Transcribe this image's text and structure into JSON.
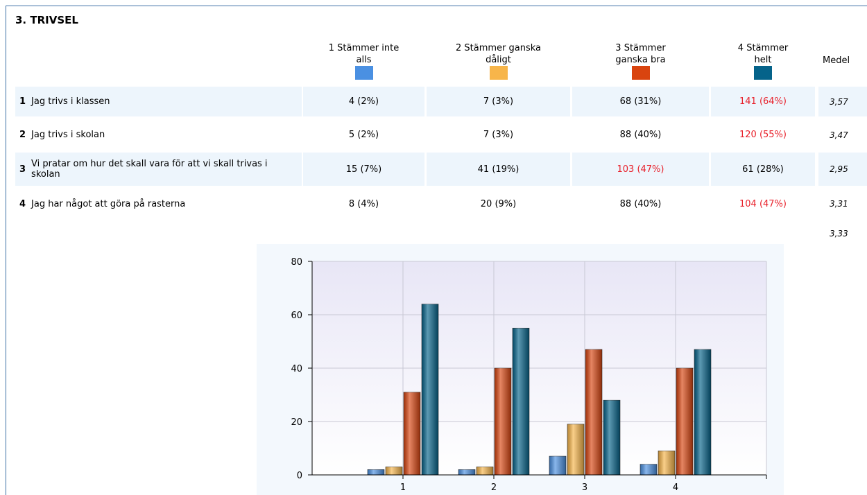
{
  "section_title": "3. TRIVSEL",
  "mean_header": "Medel",
  "rows": [
    {
      "num": "1",
      "text": "Jag trivs i klassen",
      "cells": [
        "4 (2%)",
        "7 (3%)",
        "68 (31%)",
        "141 (64%)"
      ],
      "highlight": 3,
      "mean": "3,57"
    },
    {
      "num": "2",
      "text": "Jag trivs i skolan",
      "cells": [
        "5 (2%)",
        "7 (3%)",
        "88 (40%)",
        "120 (55%)"
      ],
      "highlight": 3,
      "mean": "3,47"
    },
    {
      "num": "3",
      "text": "Vi pratar om hur det skall vara för att vi skall trivas i skolan",
      "cells": [
        "15 (7%)",
        "41 (19%)",
        "103 (47%)",
        "61 (28%)"
      ],
      "highlight": 2,
      "mean": "2,95"
    },
    {
      "num": "4",
      "text": "Jag har något att göra på rasterna",
      "cells": [
        "8 (4%)",
        "20 (9%)",
        "88 (40%)",
        "104 (47%)"
      ],
      "highlight": 3,
      "mean": "3,31"
    }
  ],
  "overall_mean": "3,33",
  "chart_data": {
    "type": "bar",
    "categories": [
      "1",
      "2",
      "3",
      "4"
    ],
    "series": [
      {
        "name": "1 Stämmer inte alls",
        "color": "#4a90e2",
        "values": [
          2,
          2,
          7,
          4
        ]
      },
      {
        "name": "2 Stämmer ganska dåligt",
        "color": "#f7b54a",
        "values": [
          3,
          3,
          19,
          9
        ]
      },
      {
        "name": "3 Stämmer ganska bra",
        "color": "#d9440f",
        "values": [
          31,
          40,
          47,
          40
        ]
      },
      {
        "name": "4 Stämmer helt",
        "color": "#05638a",
        "values": [
          64,
          55,
          28,
          47
        ]
      }
    ],
    "ylim": [
      0,
      80
    ],
    "yticks": [
      0,
      20,
      40,
      60,
      80
    ],
    "grid": true
  }
}
